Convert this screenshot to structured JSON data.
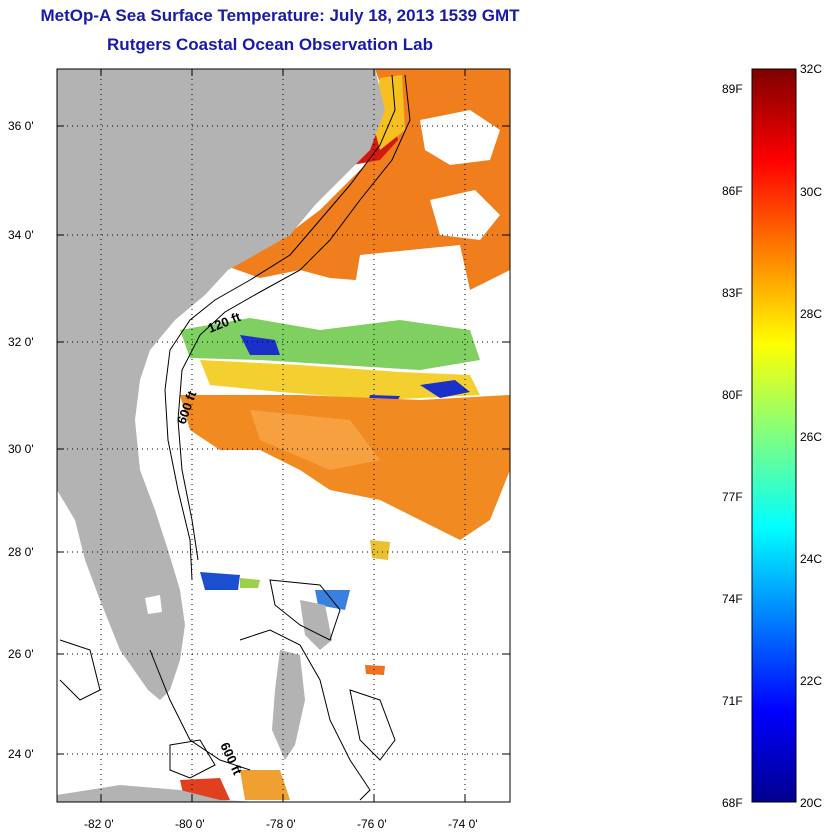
{
  "title": "MetOp-A Sea Surface Temperature:  July 18, 2013 1539 GMT",
  "subtitle": "Rutgers Coastal Ocean Observation Lab",
  "lat_labels": [
    "36 0'",
    "34 0'",
    "32 0'",
    "30 0'",
    "28 0'",
    "26 0'",
    "24 0'"
  ],
  "lon_labels": [
    "-82 0'",
    "-80 0'",
    "-78 0'",
    "-76 0'",
    "-74 0'"
  ],
  "contour_labels": [
    "120 ft",
    "600 ft",
    "600 ft"
  ],
  "colorbar": {
    "fahrenheit": [
      "89F",
      "86F",
      "83F",
      "80F",
      "77F",
      "74F",
      "71F",
      "68F"
    ],
    "celsius": [
      "32C",
      "30C",
      "28C",
      "26C",
      "24C",
      "22C",
      "20C"
    ],
    "range_c": [
      20,
      32
    ],
    "colormap": "jet"
  },
  "colors": {
    "title": "#1a1aa8",
    "land": "#b3b3b3",
    "warm_water": "#f08a1e",
    "cool_water": "#1a30c8"
  }
}
